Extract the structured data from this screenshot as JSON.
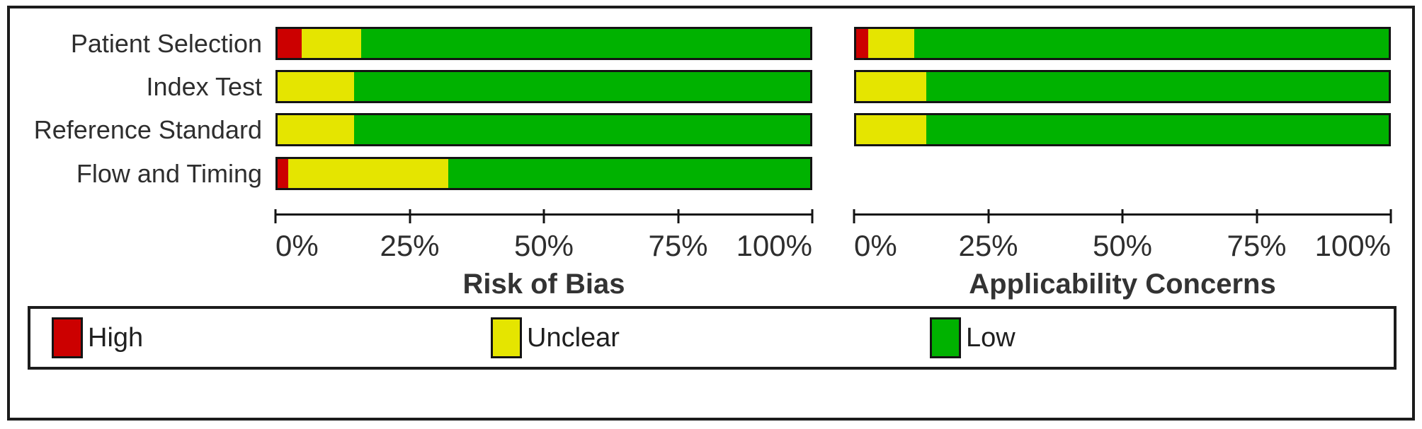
{
  "chart_data": [
    {
      "type": "bar",
      "orientation": "horizontal-stacked",
      "title": "Risk of Bias",
      "categories": [
        "Patient Selection",
        "Index Test",
        "Reference Standard",
        "Flow and Timing"
      ],
      "series": [
        {
          "name": "High",
          "color": "#CC0000",
          "values": [
            4.5,
            0,
            0,
            2.0
          ]
        },
        {
          "name": "Unclear",
          "color": "#E5E500",
          "values": [
            11.2,
            14.4,
            14.3,
            30.0
          ]
        },
        {
          "name": "Low",
          "color": "#00B200",
          "values": [
            84.3,
            85.6,
            85.7,
            68.0
          ]
        }
      ],
      "ticks": [
        "0%",
        "25%",
        "50%",
        "75%",
        "100%"
      ],
      "xlim": [
        0,
        100
      ],
      "grid": false,
      "legend_position": "bottom"
    },
    {
      "type": "bar",
      "orientation": "horizontal-stacked",
      "title": "Applicability Concerns",
      "categories": [
        "Patient Selection",
        "Index Test",
        "Reference Standard"
      ],
      "series": [
        {
          "name": "High",
          "color": "#CC0000",
          "values": [
            2.2,
            0,
            0
          ]
        },
        {
          "name": "Unclear",
          "color": "#E5E500",
          "values": [
            8.7,
            13.1,
            13.1
          ]
        },
        {
          "name": "Low",
          "color": "#00B200",
          "values": [
            89.1,
            86.9,
            86.9
          ]
        }
      ],
      "ticks": [
        "0%",
        "25%",
        "50%",
        "75%",
        "100%"
      ],
      "xlim": [
        0,
        100
      ],
      "grid": false,
      "legend_position": "bottom"
    }
  ],
  "legend": {
    "items": [
      {
        "label": "High",
        "color": "#CC0000"
      },
      {
        "label": "Unclear",
        "color": "#E5E500"
      },
      {
        "label": "Low",
        "color": "#00B200"
      }
    ]
  }
}
